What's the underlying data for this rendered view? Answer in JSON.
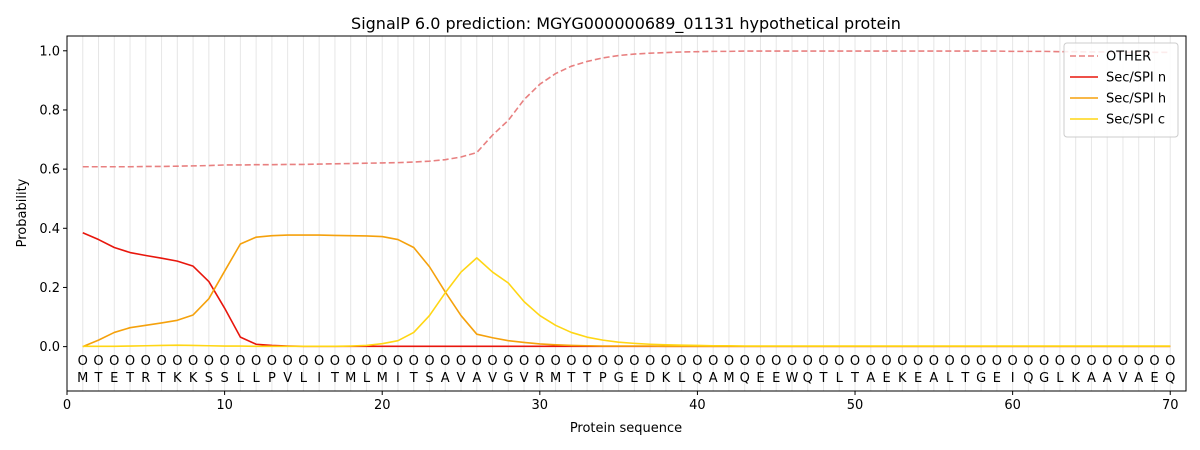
{
  "chart_data": {
    "type": "line",
    "title": "SignalP 6.0 prediction: MGYG000000689_01131 hypothetical protein",
    "xlabel": "Protein sequence",
    "ylabel": "Probability",
    "xlim": [
      0,
      71
    ],
    "ylim": [
      -0.15,
      1.05
    ],
    "x_ticks": [
      0,
      10,
      20,
      30,
      40,
      50,
      60,
      70
    ],
    "y_ticks": [
      0.0,
      0.2,
      0.4,
      0.6,
      0.8,
      1.0
    ],
    "grid": "vertical lines at each residue",
    "legend_position": "upper right",
    "residue_marker": "O",
    "sequence": [
      "M",
      "T",
      "E",
      "T",
      "R",
      "T",
      "K",
      "K",
      "S",
      "S",
      "L",
      "L",
      "P",
      "V",
      "L",
      "I",
      "T",
      "M",
      "L",
      "M",
      "I",
      "T",
      "S",
      "A",
      "V",
      "A",
      "V",
      "G",
      "V",
      "R",
      "M",
      "T",
      "T",
      "P",
      "G",
      "E",
      "D",
      "K",
      "L",
      "Q",
      "A",
      "M",
      "Q",
      "E",
      "E",
      "W",
      "Q",
      "T",
      "L",
      "T",
      "A",
      "E",
      "K",
      "E",
      "A",
      "L",
      "T",
      "G",
      "E",
      "I",
      "Q",
      "G",
      "L",
      "K",
      "A",
      "A",
      "V",
      "A",
      "E",
      "Q"
    ],
    "x": [
      1,
      2,
      3,
      4,
      5,
      6,
      7,
      8,
      9,
      10,
      11,
      12,
      13,
      14,
      15,
      16,
      17,
      18,
      19,
      20,
      21,
      22,
      23,
      24,
      25,
      26,
      27,
      28,
      29,
      30,
      31,
      32,
      33,
      34,
      35,
      36,
      37,
      38,
      39,
      40,
      41,
      42,
      43,
      44,
      45,
      46,
      47,
      48,
      49,
      50,
      51,
      52,
      53,
      54,
      55,
      56,
      57,
      58,
      59,
      60,
      61,
      62,
      63,
      64,
      65,
      66,
      67,
      68,
      69,
      70
    ],
    "series": [
      {
        "name": "OTHER",
        "color": "#e88080",
        "style": "dashed",
        "values": [
          0.608,
          0.608,
          0.608,
          0.608,
          0.609,
          0.609,
          0.61,
          0.611,
          0.612,
          0.614,
          0.614,
          0.615,
          0.615,
          0.616,
          0.616,
          0.617,
          0.618,
          0.619,
          0.62,
          0.621,
          0.622,
          0.624,
          0.627,
          0.632,
          0.641,
          0.656,
          0.715,
          0.765,
          0.835,
          0.887,
          0.923,
          0.948,
          0.964,
          0.976,
          0.984,
          0.989,
          0.992,
          0.994,
          0.996,
          0.997,
          0.998,
          0.998,
          0.999,
          0.999,
          0.999,
          0.999,
          0.999,
          0.999,
          0.999,
          0.999,
          0.999,
          0.999,
          0.999,
          0.999,
          0.999,
          0.999,
          0.999,
          0.999,
          0.999,
          0.998,
          0.998,
          0.998,
          0.997,
          0.997,
          0.996,
          0.996,
          0.995,
          0.995,
          0.995,
          0.995
        ]
      },
      {
        "name": "Sec/SPI n",
        "color": "#e8160c",
        "style": "solid",
        "values": [
          0.385,
          0.362,
          0.335,
          0.318,
          0.308,
          0.299,
          0.289,
          0.272,
          0.22,
          0.13,
          0.032,
          0.008,
          0.004,
          0.002,
          0.001,
          0.001,
          0.001,
          0.001,
          0.001,
          0.001,
          0.001,
          0.001,
          0.001,
          0.001,
          0.001,
          0.001,
          0.001,
          0.001,
          0.001,
          0.001,
          0.001,
          0.001,
          0.001,
          0.001,
          0.001,
          0.001,
          0.001,
          0.001,
          0.001,
          0.001,
          0.001,
          0.001,
          0.001,
          0.001,
          0.001,
          0.001,
          0.001,
          0.001,
          0.001,
          0.001,
          0.001,
          0.001,
          0.001,
          0.001,
          0.001,
          0.001,
          0.001,
          0.001,
          0.001,
          0.001,
          0.001,
          0.001,
          0.001,
          0.001,
          0.001,
          0.001,
          0.001,
          0.001,
          0.001,
          0.001
        ]
      },
      {
        "name": "Sec/SPI h",
        "color": "#f5a10c",
        "style": "solid",
        "values": [
          0.0,
          0.022,
          0.048,
          0.064,
          0.072,
          0.08,
          0.089,
          0.107,
          0.162,
          0.255,
          0.347,
          0.37,
          0.375,
          0.377,
          0.377,
          0.377,
          0.376,
          0.375,
          0.374,
          0.372,
          0.362,
          0.335,
          0.27,
          0.185,
          0.105,
          0.042,
          0.03,
          0.02,
          0.014,
          0.009,
          0.006,
          0.004,
          0.003,
          0.002,
          0.002,
          0.002,
          0.002,
          0.001,
          0.001,
          0.001,
          0.001,
          0.001,
          0.001,
          0.001,
          0.001,
          0.001,
          0.001,
          0.001,
          0.001,
          0.001,
          0.001,
          0.001,
          0.001,
          0.001,
          0.001,
          0.001,
          0.001,
          0.001,
          0.001,
          0.001,
          0.001,
          0.001,
          0.001,
          0.001,
          0.001,
          0.001,
          0.001,
          0.001,
          0.001,
          0.001
        ]
      },
      {
        "name": "Sec/SPI c",
        "color": "#ffd614",
        "style": "solid",
        "values": [
          0.001,
          0.001,
          0.001,
          0.002,
          0.003,
          0.004,
          0.005,
          0.004,
          0.003,
          0.002,
          0.002,
          0.001,
          0.001,
          0.001,
          0.001,
          0.001,
          0.001,
          0.002,
          0.004,
          0.01,
          0.02,
          0.048,
          0.105,
          0.182,
          0.252,
          0.3,
          0.252,
          0.215,
          0.152,
          0.105,
          0.072,
          0.048,
          0.032,
          0.022,
          0.015,
          0.011,
          0.008,
          0.006,
          0.005,
          0.004,
          0.003,
          0.003,
          0.002,
          0.002,
          0.002,
          0.002,
          0.002,
          0.002,
          0.002,
          0.002,
          0.002,
          0.002,
          0.002,
          0.002,
          0.002,
          0.002,
          0.002,
          0.002,
          0.002,
          0.002,
          0.002,
          0.002,
          0.002,
          0.002,
          0.002,
          0.002,
          0.002,
          0.002,
          0.002,
          0.002
        ]
      }
    ]
  }
}
